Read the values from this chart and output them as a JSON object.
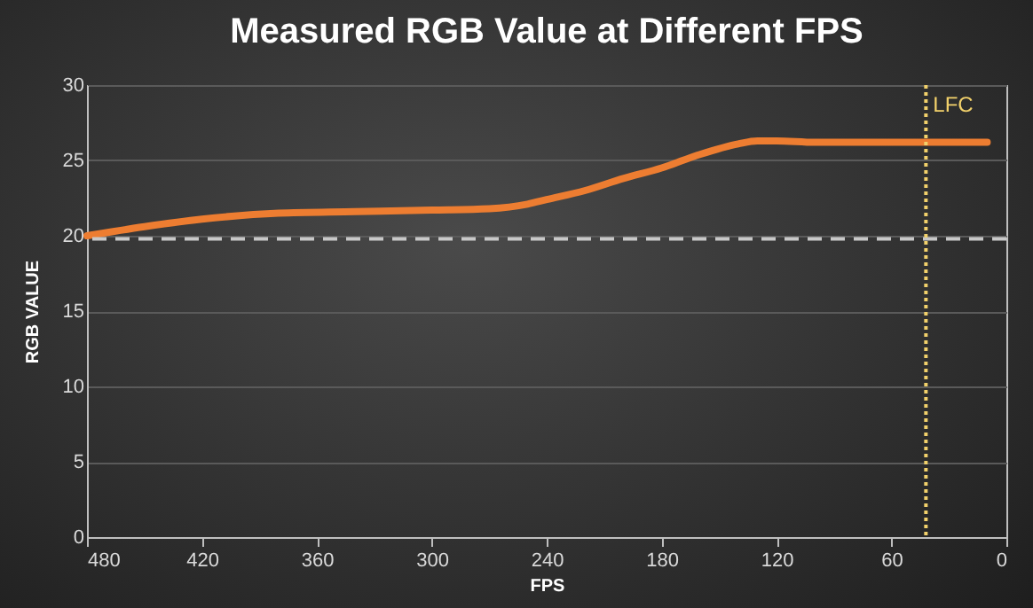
{
  "chart_data": {
    "type": "line",
    "title": "Measured RGB Value at Different FPS",
    "xlabel": "FPS",
    "ylabel": "RGB VALUE",
    "series": [
      {
        "color": "#ed7d31",
        "x": [
          480,
          450,
          420,
          380,
          340,
          300,
          270,
          250,
          240,
          220,
          200,
          180,
          160,
          140,
          130,
          120,
          100,
          80,
          60,
          40,
          10
        ],
        "values": [
          20.0,
          20.6,
          21.1,
          21.5,
          21.6,
          21.7,
          21.8,
          22.1,
          22.4,
          23.0,
          23.8,
          24.5,
          25.4,
          26.1,
          26.3,
          26.3,
          26.2,
          26.2,
          26.2,
          26.2,
          26.2
        ]
      }
    ],
    "xlim": [
      480,
      0
    ],
    "xticks": [
      480,
      420,
      360,
      300,
      240,
      180,
      120,
      60,
      0
    ],
    "ylim": [
      0,
      30
    ],
    "yticks": [
      0,
      5,
      10,
      15,
      20,
      25,
      30
    ],
    "grid": "y",
    "line_style": "solid",
    "marker": "none",
    "ref_lines": [
      {
        "axis": "y",
        "value": 19.8,
        "color": "#c8c8c8",
        "line_style": "dashed"
      },
      {
        "axis": "x",
        "value": 42,
        "label": "LFC",
        "color": "#f2d16b",
        "line_style": "dotted"
      }
    ]
  }
}
